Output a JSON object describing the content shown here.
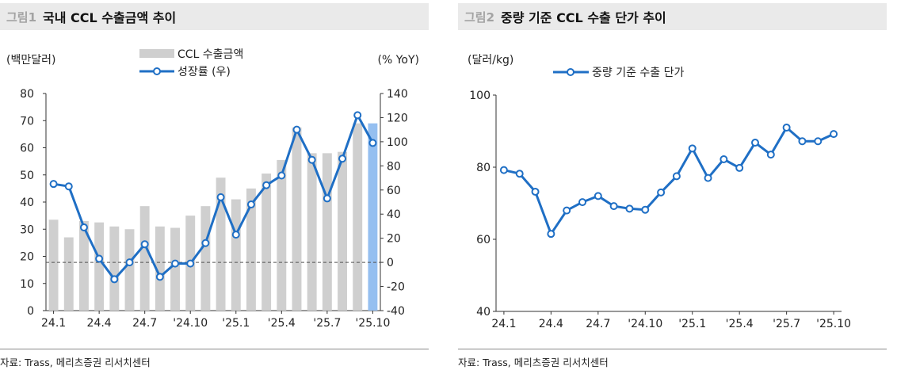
{
  "chart_data": [
    {
      "type": "bar",
      "fig_label": "그림1",
      "title": "국내 CCL 수출금액 추이",
      "unit_left": "(백만달러)",
      "unit_right": "(% YoY)",
      "categories": [
        "24.1",
        "24.2",
        "24.3",
        "24.4",
        "24.5",
        "24.6",
        "24.7",
        "24.8",
        "24.9",
        "'24.10",
        "24.11",
        "24.12",
        "'25.1",
        "25.2",
        "25.3",
        "'25.4",
        "25.5",
        "25.6",
        "'25.7",
        "25.8",
        "25.9",
        "'25.10"
      ],
      "x_tick_labels": [
        "24.1",
        "24.4",
        "24.7",
        "'24.10",
        "'25.1",
        "'25.4",
        "'25.7",
        "'25.10"
      ],
      "series": [
        {
          "name": "CCL 수출금액",
          "axis": "left",
          "kind": "bar",
          "values": [
            33.5,
            27,
            33,
            32.5,
            31,
            30,
            38.5,
            31,
            30.5,
            35,
            38.5,
            49,
            41,
            45,
            50.5,
            55.5,
            67.5,
            58,
            58,
            58.5,
            69,
            69
          ]
        },
        {
          "name": "성장률 (우)",
          "axis": "right",
          "kind": "line",
          "values": [
            65,
            63,
            29,
            3,
            -14,
            0,
            15,
            -12,
            -1,
            -1,
            16,
            54,
            23,
            48,
            64,
            72,
            110,
            85,
            53,
            86,
            122,
            99
          ]
        }
      ],
      "ylim_left": [
        0,
        80
      ],
      "yticks_left": [
        0,
        10,
        20,
        30,
        40,
        50,
        60,
        70,
        80
      ],
      "ylim_right": [
        -40,
        140
      ],
      "yticks_right": [
        -40,
        -20,
        0,
        20,
        40,
        60,
        80,
        100,
        120,
        140
      ],
      "colors": {
        "bar": "#cfcfcf",
        "bar_highlight": "#95bff0",
        "line": "#1f6fc5",
        "zero_line": "#555555"
      },
      "legend_position": "top-center",
      "source": "자료: Trass, 메리츠증권 리서치센터"
    },
    {
      "type": "line",
      "fig_label": "그림2",
      "title": "중량 기준 CCL 수출 단가 추이",
      "unit_left": "(달러/kg)",
      "categories": [
        "24.1",
        "24.2",
        "24.3",
        "24.4",
        "24.5",
        "24.6",
        "24.7",
        "24.8",
        "24.9",
        "'24.10",
        "24.11",
        "24.12",
        "'25.1",
        "25.2",
        "25.3",
        "'25.4",
        "25.5",
        "25.6",
        "'25.7",
        "25.8",
        "25.9",
        "'25.10"
      ],
      "x_tick_labels": [
        "24.1",
        "24.4",
        "24.7",
        "'24.10",
        "'25.1",
        "'25.4",
        "'25.7",
        "'25.10"
      ],
      "series": [
        {
          "name": "중량 기준 수출 단가",
          "values": [
            79.2,
            78.2,
            73.2,
            61.5,
            68,
            70.3,
            72,
            69.2,
            68.5,
            68.2,
            73,
            77.5,
            85.2,
            77,
            82.2,
            79.8,
            86.8,
            83.5,
            91,
            87.2,
            87.2,
            89.2
          ]
        }
      ],
      "ylim": [
        40,
        100
      ],
      "yticks": [
        40,
        60,
        80,
        100
      ],
      "colors": {
        "line": "#1f6fc5"
      },
      "legend_position": "top-left",
      "source": "자료: Trass, 메리츠증권 리서치센터"
    }
  ]
}
